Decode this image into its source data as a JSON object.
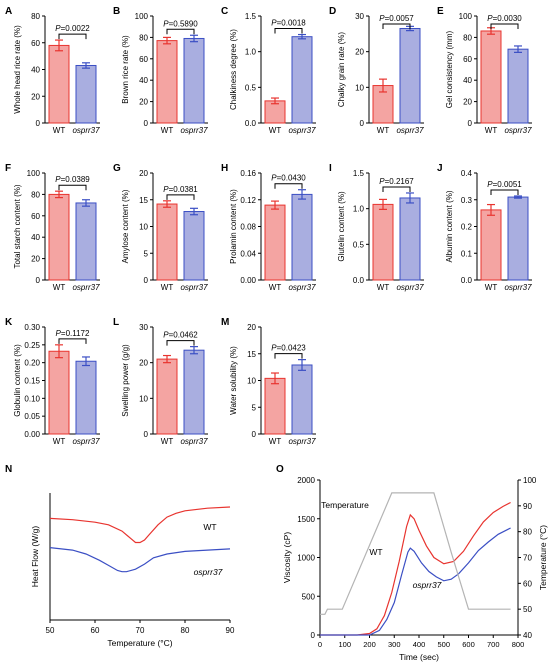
{
  "colors": {
    "wt": "#e8342f",
    "mut": "#3b4fc4",
    "wt_fill": "#f4a4a2",
    "mut_fill": "#a9aee0",
    "temp": "#b4b4b4"
  },
  "groups": [
    "WT",
    "osprr37"
  ],
  "chart_data": [
    {
      "type": "bar",
      "panel": "A",
      "ylabel": "Whole head rice rate (%)",
      "ylim": [
        0,
        80
      ],
      "yticks": [
        "0",
        "20",
        "40",
        "60",
        "80"
      ],
      "pvalue": "P=0.0022",
      "categories": [
        "WT",
        "osprr37"
      ],
      "values": [
        58,
        43
      ],
      "errors": [
        4,
        2
      ]
    },
    {
      "type": "bar",
      "panel": "B",
      "ylabel": "Brown rice rate (%)",
      "ylim": [
        0,
        100
      ],
      "yticks": [
        "0",
        "20",
        "40",
        "60",
        "80",
        "100"
      ],
      "pvalue": "P=0.5890",
      "categories": [
        "WT",
        "osprr37"
      ],
      "values": [
        77,
        79
      ],
      "errors": [
        3,
        3
      ]
    },
    {
      "type": "bar",
      "panel": "C",
      "ylabel": "Chalkiness degree (%)",
      "ylim": [
        0,
        1.5
      ],
      "yticks": [
        "0.0",
        "0.5",
        "1.0",
        "1.5"
      ],
      "pvalue": "P=0.0018",
      "categories": [
        "WT",
        "osprr37"
      ],
      "values": [
        0.31,
        1.21
      ],
      "errors": [
        0.04,
        0.03
      ]
    },
    {
      "type": "bar",
      "panel": "D",
      "ylabel": "Chalky grain rate (%)",
      "ylim": [
        0,
        30
      ],
      "yticks": [
        "0",
        "10",
        "20",
        "30"
      ],
      "pvalue": "P=0.0057",
      "categories": [
        "WT",
        "osprr37"
      ],
      "values": [
        10.5,
        26.5
      ],
      "errors": [
        1.8,
        0.6
      ]
    },
    {
      "type": "bar",
      "panel": "E",
      "ylabel": "Gel consistency (mm)",
      "ylim": [
        0,
        100
      ],
      "yticks": [
        "0",
        "20",
        "40",
        "60",
        "80",
        "100"
      ],
      "pvalue": "P=0.0030",
      "categories": [
        "WT",
        "osprr37"
      ],
      "values": [
        86,
        69
      ],
      "errors": [
        3,
        3
      ]
    },
    {
      "type": "bar",
      "panel": "F",
      "ylabel": "Total starch content (%)",
      "ylim": [
        0,
        100
      ],
      "yticks": [
        "0",
        "20",
        "40",
        "60",
        "80",
        "100"
      ],
      "pvalue": "P=0.0389",
      "categories": [
        "WT",
        "osprr37"
      ],
      "values": [
        80,
        72
      ],
      "errors": [
        3,
        3
      ]
    },
    {
      "type": "bar",
      "panel": "G",
      "ylabel": "Amylose content (%)",
      "ylim": [
        0,
        20
      ],
      "yticks": [
        "0",
        "5",
        "10",
        "15",
        "20"
      ],
      "pvalue": "P=0.0381",
      "categories": [
        "WT",
        "osprr37"
      ],
      "values": [
        14.2,
        12.8
      ],
      "errors": [
        0.6,
        0.6
      ]
    },
    {
      "type": "bar",
      "panel": "H",
      "ylabel": "Prolamin content (%)",
      "ylim": [
        0,
        0.16
      ],
      "yticks": [
        "0.00",
        "0.04",
        "0.08",
        "0.12",
        "0.16"
      ],
      "pvalue": "P=0.0430",
      "categories": [
        "WT",
        "osprr37"
      ],
      "values": [
        0.112,
        0.128
      ],
      "errors": [
        0.006,
        0.007
      ]
    },
    {
      "type": "bar",
      "panel": "I",
      "ylabel": "Glutelin content (%)",
      "ylim": [
        0,
        1.5
      ],
      "yticks": [
        "0.0",
        "0.5",
        "1.0",
        "1.5"
      ],
      "pvalue": "P=0.2167",
      "categories": [
        "WT",
        "osprr37"
      ],
      "values": [
        1.06,
        1.15
      ],
      "errors": [
        0.07,
        0.07
      ]
    },
    {
      "type": "bar",
      "panel": "J",
      "ylabel": "Albumin content (%)",
      "ylim": [
        0,
        0.4
      ],
      "yticks": [
        "0.0",
        "0.1",
        "0.2",
        "0.3",
        "0.4"
      ],
      "pvalue": "P=0.0051",
      "categories": [
        "WT",
        "osprr37"
      ],
      "values": [
        0.262,
        0.31
      ],
      "errors": [
        0.02,
        0.004
      ]
    },
    {
      "type": "bar",
      "panel": "K",
      "ylabel": "Globulin content (%)",
      "ylim": [
        0,
        0.3
      ],
      "yticks": [
        "0.00",
        "0.05",
        "0.10",
        "0.15",
        "0.20",
        "0.25",
        "0.30"
      ],
      "pvalue": "P=0.1172",
      "categories": [
        "WT",
        "osprr37"
      ],
      "values": [
        0.232,
        0.204
      ],
      "errors": [
        0.018,
        0.012
      ]
    },
    {
      "type": "bar",
      "panel": "L",
      "ylabel": "Swelling power (g/g)",
      "ylim": [
        0,
        30
      ],
      "yticks": [
        "0",
        "10",
        "20",
        "30"
      ],
      "pvalue": "P=0.0462",
      "categories": [
        "WT",
        "osprr37"
      ],
      "values": [
        21,
        23.5
      ],
      "errors": [
        1,
        1
      ]
    },
    {
      "type": "bar",
      "panel": "M",
      "ylabel": "Water solubility (%)",
      "ylim": [
        0,
        20
      ],
      "yticks": [
        "0",
        "5",
        "10",
        "15",
        "20"
      ],
      "pvalue": "P=0.0423",
      "categories": [
        "WT",
        "osprr37"
      ],
      "values": [
        10.4,
        12.9
      ],
      "errors": [
        1,
        1
      ]
    },
    {
      "type": "line",
      "panel": "N",
      "xlabel": "Temperature (°C)",
      "ylabel": "Heat Flow (W/g)",
      "xlim": [
        50,
        90
      ],
      "xticks": [
        "50",
        "60",
        "70",
        "80",
        "90"
      ],
      "labels": {
        "wt": "WT",
        "mut": "osprr37"
      },
      "series": [
        {
          "name": "WT",
          "x": [
            50,
            55,
            60,
            63,
            66,
            68,
            69,
            70,
            71,
            72,
            74,
            76,
            78,
            80,
            85,
            90
          ],
          "y": [
            0.8,
            0.79,
            0.77,
            0.75,
            0.7,
            0.64,
            0.61,
            0.61,
            0.63,
            0.67,
            0.75,
            0.81,
            0.84,
            0.86,
            0.88,
            0.89
          ]
        },
        {
          "name": "osprr37",
          "x": [
            50,
            55,
            58,
            61,
            63,
            65,
            66,
            67,
            69,
            71,
            73,
            76,
            80,
            85,
            90
          ],
          "y": [
            0.57,
            0.55,
            0.52,
            0.47,
            0.43,
            0.39,
            0.38,
            0.38,
            0.4,
            0.44,
            0.49,
            0.52,
            0.54,
            0.55,
            0.56
          ]
        }
      ]
    },
    {
      "type": "line",
      "panel": "O",
      "xlabel": "Time (sec)",
      "ylabel": "Viscosity (cP)",
      "y2label": "Temperature (°C)",
      "xlim": [
        0,
        800
      ],
      "xticks": [
        "0",
        "100",
        "200",
        "300",
        "400",
        "500",
        "600",
        "700",
        "800"
      ],
      "ylim": [
        0,
        2000
      ],
      "yticks": [
        "0",
        "500",
        "1000",
        "1500",
        "2000"
      ],
      "y2lim": [
        40,
        100
      ],
      "y2ticks": [
        "40",
        "50",
        "60",
        "70",
        "80",
        "90",
        "100"
      ],
      "labels": {
        "wt": "WT",
        "mut": "osprr37",
        "temp": "Temperature"
      },
      "series": [
        {
          "name": "WT",
          "x": [
            0,
            150,
            200,
            230,
            260,
            290,
            320,
            350,
            365,
            380,
            400,
            430,
            460,
            500,
            540,
            580,
            620,
            660,
            700,
            740,
            770
          ],
          "y": [
            0,
            0,
            20,
            80,
            250,
            550,
            950,
            1400,
            1550,
            1500,
            1350,
            1150,
            1000,
            920,
            950,
            1080,
            1280,
            1460,
            1580,
            1660,
            1710
          ]
        },
        {
          "name": "osprr37",
          "x": [
            0,
            200,
            240,
            270,
            300,
            330,
            355,
            365,
            380,
            410,
            440,
            470,
            500,
            530,
            560,
            600,
            640,
            680,
            720,
            770
          ],
          "y": [
            0,
            0,
            60,
            200,
            420,
            780,
            1070,
            1120,
            1080,
            930,
            820,
            750,
            700,
            720,
            790,
            930,
            1090,
            1200,
            1300,
            1380
          ]
        },
        {
          "name": "Temperature",
          "x": [
            0,
            20,
            30,
            60,
            90,
            290,
            420,
            460,
            530,
            600,
            770
          ],
          "y": [
            48,
            48,
            50,
            50,
            50,
            95,
            95,
            95,
            72,
            50,
            50
          ]
        }
      ]
    }
  ]
}
